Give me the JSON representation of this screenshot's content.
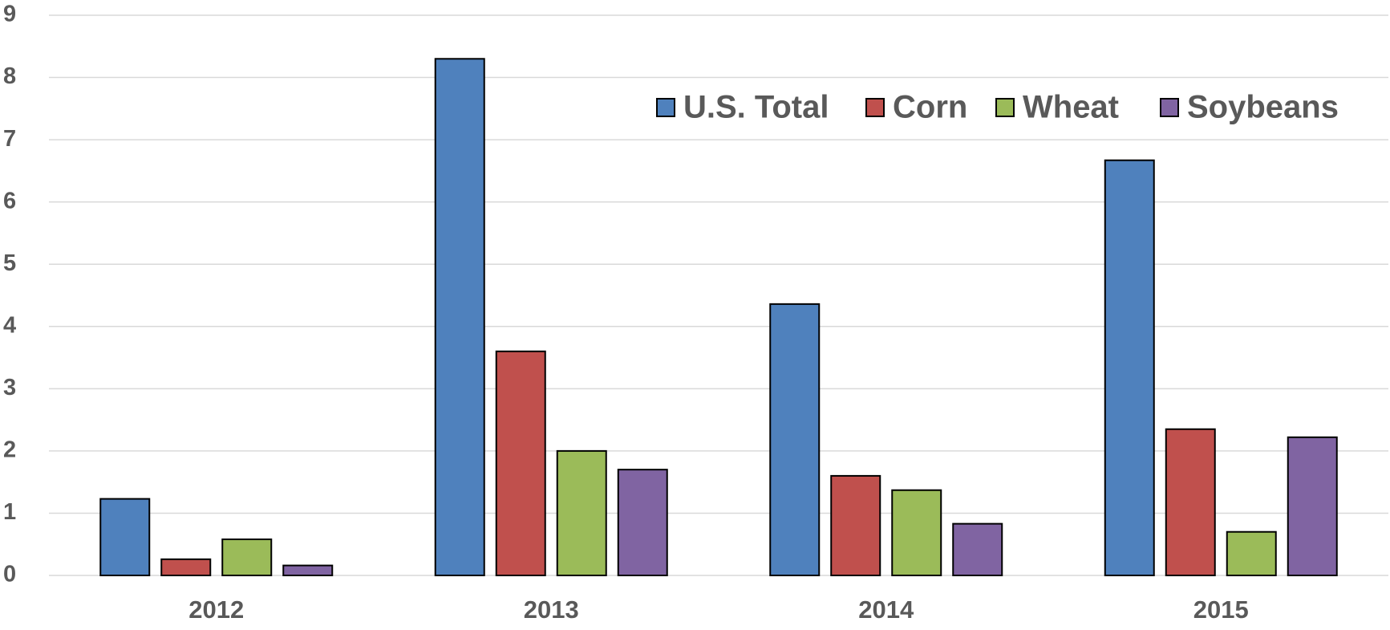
{
  "chart_data": {
    "type": "bar",
    "categories": [
      "2012",
      "2013",
      "2014",
      "2015"
    ],
    "series": [
      {
        "name": "U.S. Total",
        "color": "#4f81bd",
        "values": [
          1.23,
          8.3,
          4.36,
          6.67
        ]
      },
      {
        "name": "Corn",
        "color": "#c0504d",
        "values": [
          0.26,
          3.6,
          1.6,
          2.35
        ]
      },
      {
        "name": "Wheat",
        "color": "#9bbb59",
        "values": [
          0.58,
          2.0,
          1.37,
          0.7
        ]
      },
      {
        "name": "Soybeans",
        "color": "#8064a2",
        "values": [
          0.16,
          1.7,
          0.83,
          2.22
        ]
      }
    ],
    "ylim": [
      0,
      9
    ],
    "yticks": [
      0,
      1,
      2,
      3,
      4,
      5,
      6,
      7,
      8,
      9
    ],
    "grid": true,
    "legend": "top-right"
  }
}
